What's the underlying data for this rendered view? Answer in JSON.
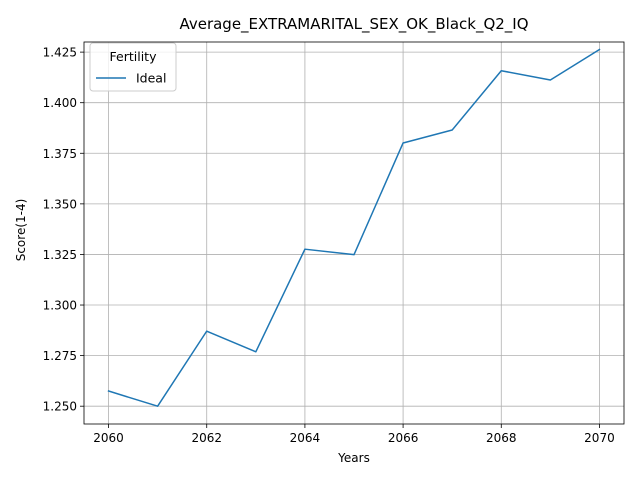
{
  "chart_data": {
    "type": "line",
    "title": "Average_EXTRAMARITAL_SEX_OK_Black_Q2_IQ",
    "xlabel": "Years",
    "ylabel": "Score(1-4)",
    "x": [
      2060,
      2061,
      2062,
      2063,
      2064,
      2065,
      2066,
      2067,
      2068,
      2069,
      2070
    ],
    "series": [
      {
        "name": "Ideal",
        "color": "#1f77b4",
        "values": [
          1.2575,
          1.25,
          1.2871,
          1.2769,
          1.3276,
          1.3249,
          1.3801,
          1.3865,
          1.4158,
          1.4112,
          1.4263
        ]
      }
    ],
    "xlim": [
      2059.5,
      2070.5
    ],
    "ylim": [
      1.2412,
      1.43
    ],
    "xticks": [
      2060,
      2062,
      2064,
      2066,
      2068,
      2070
    ],
    "yticks": [
      1.25,
      1.275,
      1.3,
      1.325,
      1.35,
      1.375,
      1.4,
      1.425
    ],
    "grid": true,
    "legend": {
      "title": "Fertility",
      "placement": "top-left"
    }
  }
}
